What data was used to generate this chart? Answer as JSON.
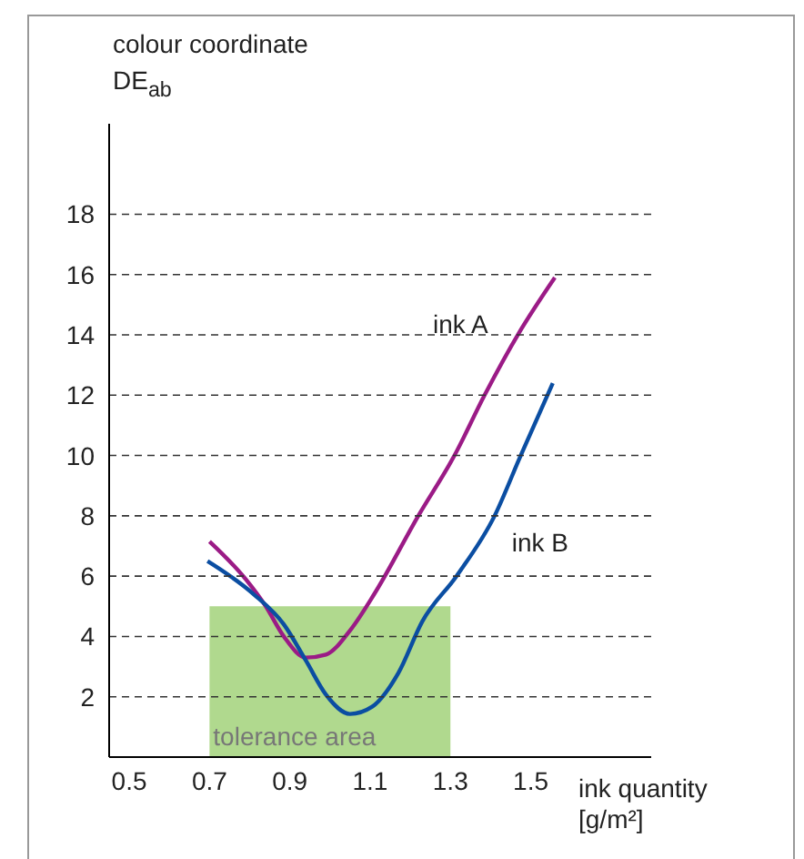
{
  "chart_data": {
    "type": "line",
    "xlabel": "ink quantity [g/m²]",
    "ylabel": "colour coordinate DE$_{ab}$",
    "xlim": [
      0.45,
      1.8
    ],
    "xticks": [
      0.5,
      0.7,
      0.9,
      1.1,
      1.3,
      1.5
    ],
    "ylim": [
      0,
      21
    ],
    "yticks": [
      2,
      4,
      6,
      8,
      10,
      12,
      14,
      16,
      18
    ],
    "grid": "y",
    "line_style": "solid",
    "marker": "none",
    "series": [
      {
        "type": "area",
        "color": "#b0d98e",
        "x": [
          0.7,
          1.3
        ],
        "values": [
          5,
          5
        ]
      },
      {
        "name": "ink A",
        "color": "#9b1b86",
        "x": [
          0.7,
          0.79,
          0.84,
          0.885,
          0.94,
          0.99,
          1.05,
          1.11,
          1.22,
          1.31,
          1.385,
          1.47,
          1.56
        ],
        "values": [
          7.15,
          5.9,
          5.0,
          4.0,
          3.3,
          3.4,
          4.2,
          5.4,
          8.0,
          10.0,
          12.0,
          14.05,
          15.9
        ]
      },
      {
        "name": "ink B",
        "color": "#0b4ea2",
        "x": [
          0.695,
          0.81,
          0.885,
          0.94,
          0.99,
          1.05,
          1.105,
          1.17,
          1.23,
          1.315,
          1.41,
          1.475,
          1.555
        ],
        "values": [
          6.5,
          5.4,
          4.4,
          3.2,
          2.07,
          1.43,
          1.67,
          2.78,
          4.5,
          6.0,
          8.0,
          10.0,
          12.4
        ]
      }
    ],
    "annotations": [
      "tolerance area"
    ]
  }
}
